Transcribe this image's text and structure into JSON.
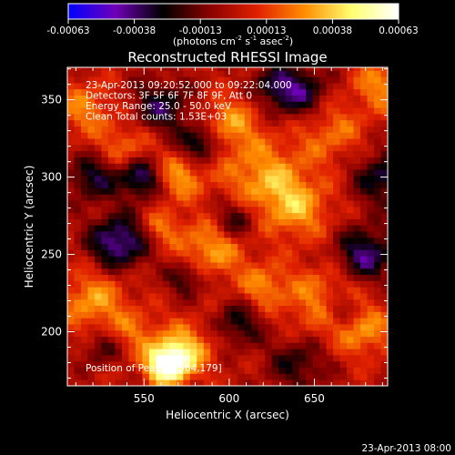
{
  "chart_data": {
    "type": "heatmap",
    "title": "Reconstructed RHESSI Image",
    "xlabel": "Heliocentric X (arcsec)",
    "ylabel": "Heliocentric Y (arcsec)",
    "xlim": [
      505,
      693
    ],
    "ylim": [
      165,
      371
    ],
    "xticks": [
      550,
      600,
      650
    ],
    "yticks": [
      200,
      250,
      300,
      350
    ],
    "colorbar": {
      "min": -0.00063,
      "max": 0.00063,
      "tick_labels": [
        "-0.00063",
        "-0.00038",
        "-0.00013",
        "0.00013",
        "0.00038",
        "0.00063"
      ],
      "unit_label": "(photons cm-2 s-1 asec-2)",
      "colormap": [
        "#0000ff",
        "#7000b8",
        "#000000",
        "#8a0000",
        "#e02000",
        "#ff8c00",
        "#ffff70",
        "#ffffff"
      ]
    },
    "annotations": [
      "23-Apr-2013 09:20:52.000 to 09:22:04.000",
      "Detectors: 3F 5F 6F 7F 8F 9F, Att 0",
      "Energy Range: 25.0 - 50.0 keV",
      "Clean     Total counts: 1.53E+03"
    ],
    "peak": {
      "label": "Position of Peak = [564,179]",
      "x": 564,
      "y": 179
    },
    "grid": false
  },
  "footer_timestamp": "23-Apr-2013 08:00"
}
